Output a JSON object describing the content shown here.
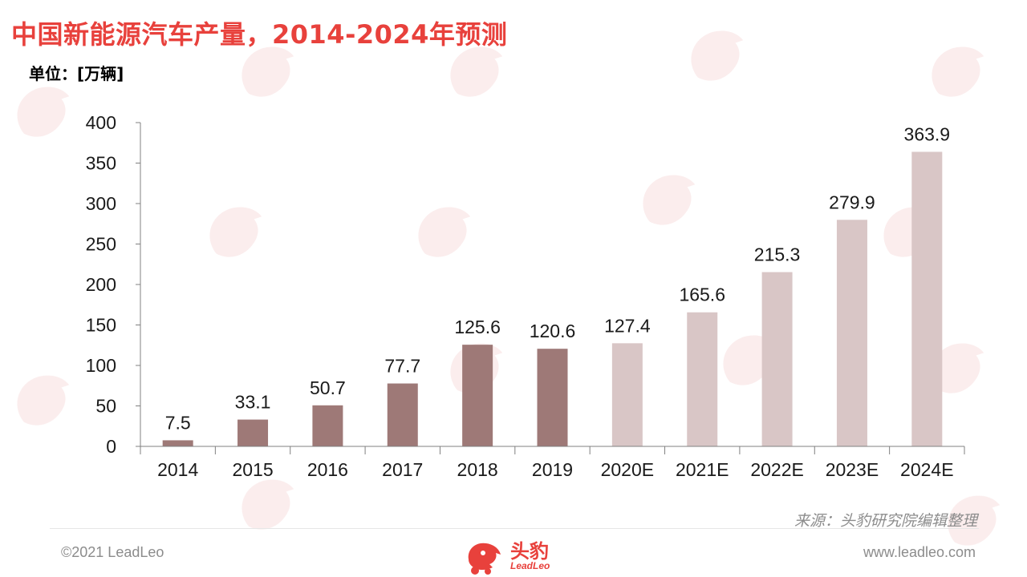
{
  "title": "中国新能源汽车产量，2014-2024年预测",
  "unit_label": "单位：[万辆]",
  "source": "来源：头豹研究院编辑整理",
  "footer": {
    "copyright": "©2021 LeadLeo",
    "website": "www.leadleo.com",
    "logo_text": "头豹",
    "logo_sub": "LeadLeo"
  },
  "colors": {
    "title": "#e8413c",
    "actual_bar": "#9e7977",
    "forecast_bar": "#d9c6c6",
    "axis": "#808080",
    "text": "#1a1a1a"
  },
  "chart_data": {
    "type": "bar",
    "categories": [
      "2014",
      "2015",
      "2016",
      "2017",
      "2018",
      "2019",
      "2020E",
      "2021E",
      "2022E",
      "2023E",
      "2024E"
    ],
    "values": [
      7.5,
      33.1,
      50.7,
      77.7,
      125.6,
      120.6,
      127.4,
      165.6,
      215.3,
      279.9,
      363.9
    ],
    "value_labels": [
      "7.5",
      "33.1",
      "50.7",
      "77.7",
      "125.6",
      "120.6",
      "127.4",
      "165.6",
      "215.3",
      "279.9",
      "363.9"
    ],
    "forecast": [
      false,
      false,
      false,
      false,
      false,
      false,
      true,
      true,
      true,
      true,
      true
    ],
    "ylim": [
      0,
      400
    ],
    "yticks": [
      0,
      50,
      100,
      150,
      200,
      250,
      300,
      350,
      400
    ],
    "grid": false,
    "legend": "none"
  }
}
